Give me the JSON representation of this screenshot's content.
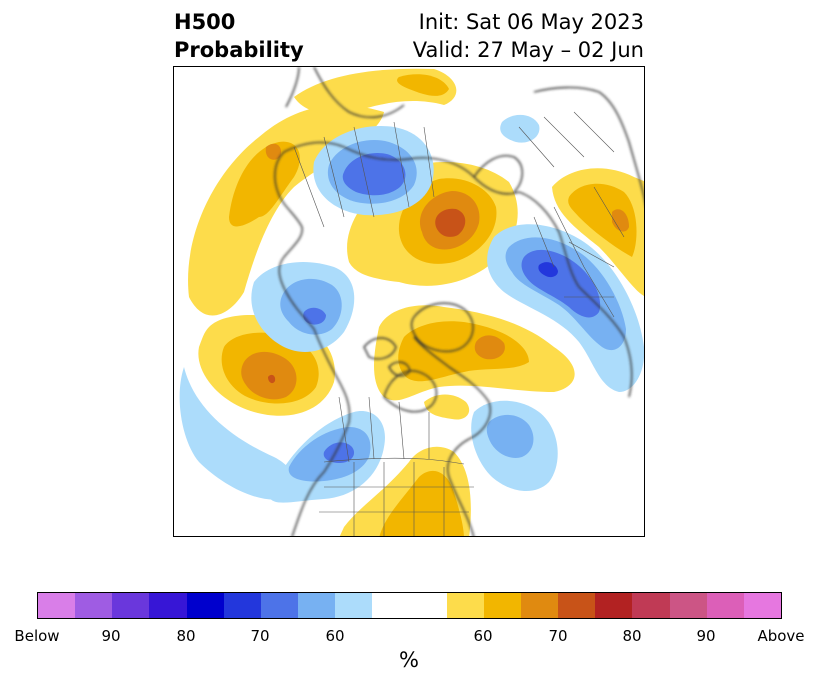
{
  "header": {
    "title_line1": "H500",
    "title_line2": "Probability",
    "init_text": "Init: Sat 06 May 2023",
    "valid_text": "Valid: 27 May – 02 Jun"
  },
  "colorbar": {
    "units": "%",
    "tick_labels": [
      "Below",
      "90",
      "80",
      "70",
      "60",
      "60",
      "70",
      "80",
      "90",
      "Above"
    ],
    "colors": [
      "#d97ee8",
      "#9f5ce3",
      "#6a37dc",
      "#3716d6",
      "#0000cd",
      "#2337dc",
      "#4d73e8",
      "#77b1f2",
      "#acdcfb",
      "#ffffff",
      "#fddc4b",
      "#f2b600",
      "#e08a10",
      "#c85318",
      "#b22222",
      "#c03a55",
      "#cc5585",
      "#dc5fb8",
      "#e677e0"
    ]
  },
  "map": {
    "projection": "north-polar-stereographic",
    "palette": {
      "blue_light": "#acdcfb",
      "blue_mid": "#77b1f2",
      "blue_dark": "#4d73e8",
      "blue_deep": "#2337dc",
      "yellow": "#fddc4b",
      "gold": "#f2b600",
      "orange": "#e08a10",
      "red_orange": "#c85318",
      "coastline": "#333333"
    }
  }
}
